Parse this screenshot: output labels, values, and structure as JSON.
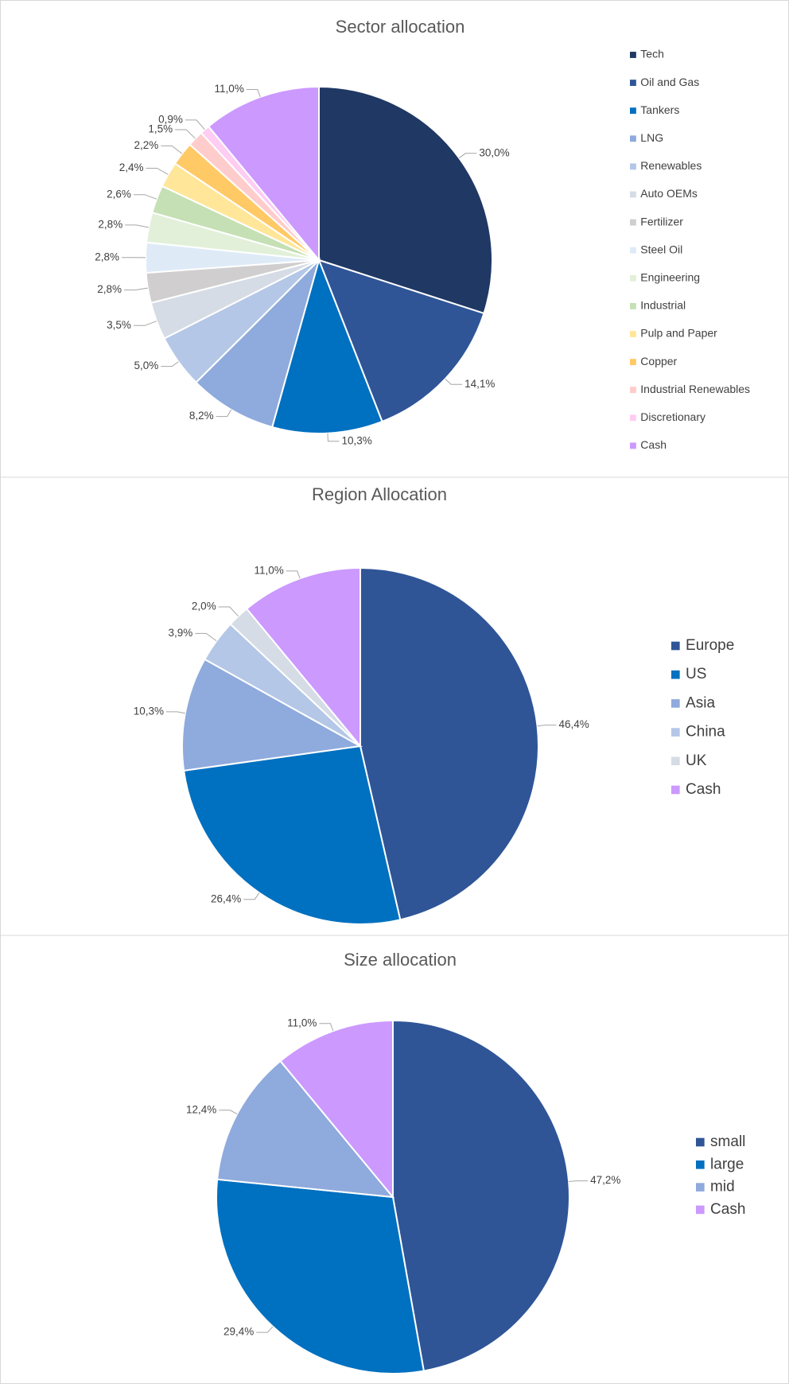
{
  "chart_data": [
    {
      "type": "pie",
      "title": "Sector allocation",
      "categories": [
        "Tech",
        "Oil and Gas",
        "Tankers",
        "LNG",
        "Renewables",
        "Auto OEMs",
        "Fertilizer",
        "Steel Oil",
        "Engineering",
        "Industrial",
        "Pulp and Paper",
        "Copper",
        "Industrial Renewables",
        "Discretionary",
        "Cash"
      ],
      "values": [
        30.0,
        14.1,
        10.3,
        8.2,
        5.0,
        3.5,
        2.8,
        2.8,
        2.8,
        2.6,
        2.4,
        2.2,
        1.5,
        0.9,
        11.0
      ],
      "value_labels": [
        "30,0%",
        "14,1%",
        "10,3%",
        "8,2%",
        "5,0%",
        "3,5%",
        "2,8%",
        "2,8%",
        "2,8%",
        "2,6%",
        "2,4%",
        "2,2%",
        "1,5%",
        "0,9%",
        "11,0%"
      ],
      "colors": [
        "#1f3864",
        "#2f5597",
        "#0070c0",
        "#8faadc",
        "#b4c7e7",
        "#d6dce5",
        "#d0cece",
        "#deebf7",
        "#e2f0d9",
        "#c5e0b4",
        "#ffe699",
        "#ffc966",
        "#ffcccc",
        "#ffccf2",
        "#cc99ff"
      ],
      "legend": "right"
    },
    {
      "type": "pie",
      "title": "Region Allocation",
      "categories": [
        "Europe",
        "US",
        "Asia",
        "China",
        "UK",
        "Cash"
      ],
      "values": [
        46.4,
        26.4,
        10.3,
        3.9,
        2.0,
        11.0
      ],
      "value_labels": [
        "46,4%",
        "26,4%",
        "10,3%",
        "3,9%",
        "2,0%",
        "11,0%"
      ],
      "colors": [
        "#2f5597",
        "#0070c0",
        "#8faadc",
        "#b4c7e7",
        "#d6dce5",
        "#cc99ff"
      ],
      "legend": "right"
    },
    {
      "type": "pie",
      "title": "Size allocation",
      "categories": [
        "small",
        "large",
        "mid",
        "Cash"
      ],
      "values": [
        47.2,
        29.4,
        12.4,
        11.0
      ],
      "value_labels": [
        "47,2%",
        "29,4%",
        "12,4%",
        "11,0%"
      ],
      "colors": [
        "#2f5597",
        "#0070c0",
        "#8faadc",
        "#cc99ff"
      ],
      "legend": "right"
    }
  ]
}
